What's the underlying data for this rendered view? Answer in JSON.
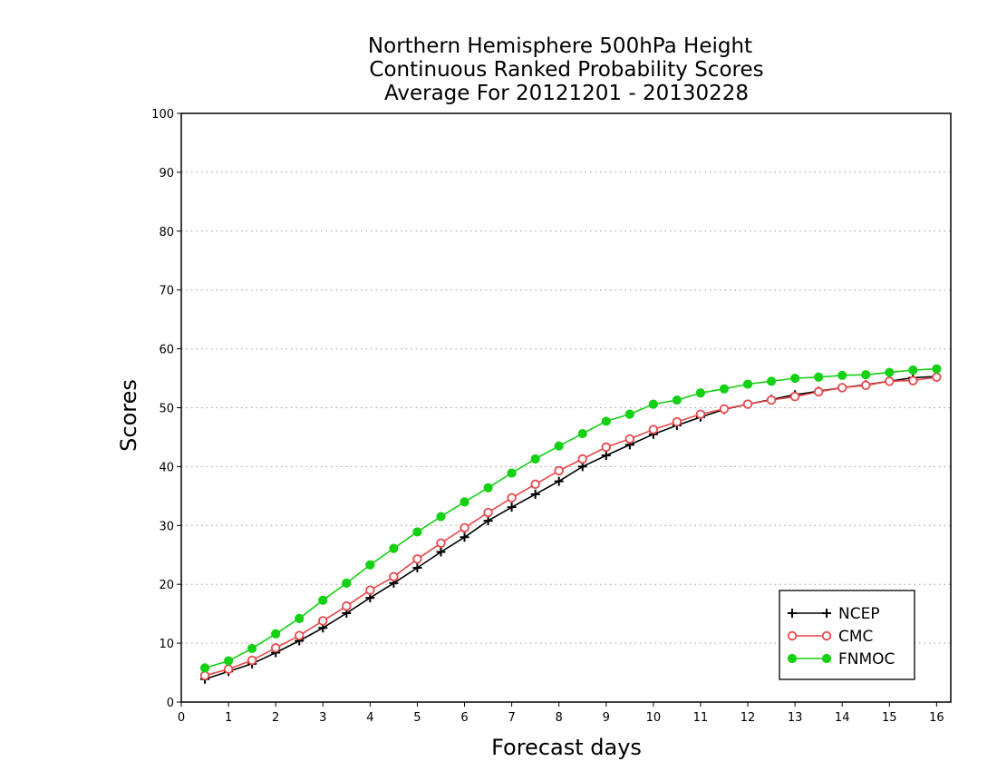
{
  "chart_data": {
    "type": "line",
    "title_lines": [
      "Northern Hemisphere 500hPa Height",
      "Continuous Ranked Probability Scores",
      "Average For 20121201 - 20130228"
    ],
    "xlabel": "Forecast days",
    "ylabel": "Scores",
    "xlim": [
      0,
      16.3
    ],
    "ylim": [
      0,
      100
    ],
    "xticks": [
      0,
      1,
      2,
      3,
      4,
      5,
      6,
      7,
      8,
      9,
      10,
      11,
      12,
      13,
      14,
      15,
      16
    ],
    "yticks": [
      0,
      10,
      20,
      30,
      40,
      50,
      60,
      70,
      80,
      90,
      100
    ],
    "grid": "horizontal-dotted",
    "legend_position": "bottom-right",
    "x": [
      0.5,
      1,
      1.5,
      2,
      2.5,
      3,
      3.5,
      4,
      4.5,
      5,
      5.5,
      6,
      6.5,
      7,
      7.5,
      8,
      8.5,
      9,
      9.5,
      10,
      10.5,
      11,
      11.5,
      12,
      12.5,
      13,
      13.5,
      14,
      14.5,
      15,
      15.5,
      16
    ],
    "series": [
      {
        "name": "NCEP",
        "color": "#000000",
        "marker": "plus",
        "values": [
          3.9,
          5.2,
          6.5,
          8.4,
          10.4,
          12.6,
          15.1,
          17.7,
          20.2,
          22.8,
          25.5,
          28.0,
          30.8,
          33.1,
          35.3,
          37.5,
          40.0,
          41.9,
          43.7,
          45.5,
          47.0,
          48.4,
          49.7,
          50.6,
          51.4,
          52.2,
          52.8,
          53.4,
          53.9,
          54.5,
          55.1,
          55.3
        ]
      },
      {
        "name": "CMC",
        "color": "#e8474a",
        "marker": "open-circle",
        "values": [
          4.5,
          5.6,
          7.1,
          9.2,
          11.3,
          13.8,
          16.3,
          19.0,
          21.3,
          24.3,
          27.0,
          29.6,
          32.2,
          34.7,
          37.0,
          39.3,
          41.3,
          43.3,
          44.7,
          46.3,
          47.6,
          48.9,
          49.8,
          50.6,
          51.3,
          51.9,
          52.7,
          53.4,
          53.8,
          54.5,
          54.6,
          55.2
        ]
      },
      {
        "name": "FNMOC",
        "color": "#14d114",
        "marker": "filled-circle",
        "values": [
          5.8,
          7.0,
          9.1,
          11.6,
          14.2,
          17.3,
          20.2,
          23.3,
          26.1,
          28.9,
          31.5,
          34.0,
          36.4,
          38.9,
          41.3,
          43.5,
          45.6,
          47.7,
          48.9,
          50.6,
          51.3,
          52.5,
          53.2,
          54.0,
          54.5,
          55.0,
          55.2,
          55.5,
          55.6,
          56.0,
          56.4,
          56.6
        ]
      }
    ]
  }
}
